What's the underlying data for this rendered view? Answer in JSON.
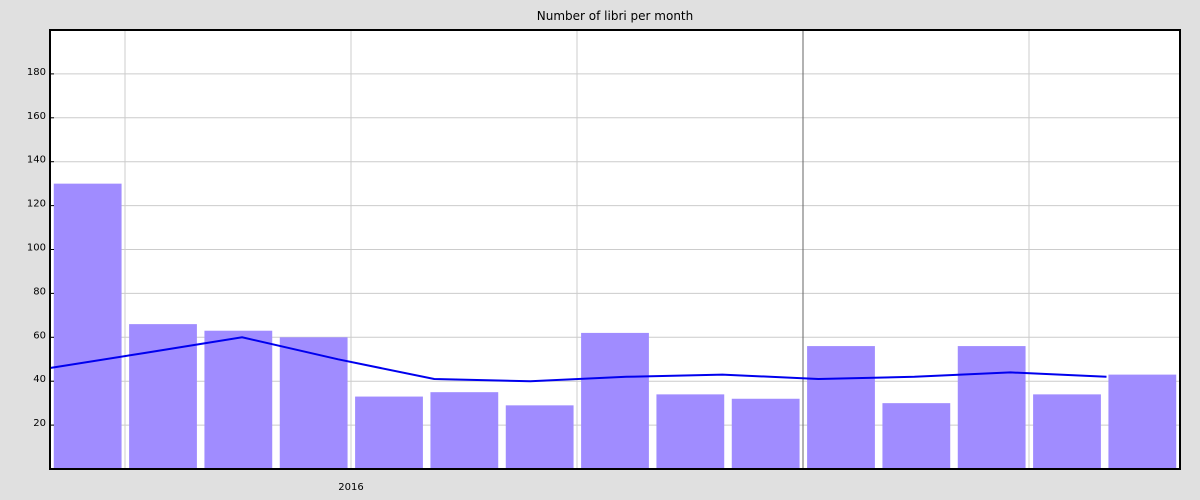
{
  "chart_data": {
    "type": "bar",
    "title": "Number of libri per month",
    "xlabel": "",
    "ylabel": "",
    "x_tick_labels": [
      "2016"
    ],
    "ylim": [
      0,
      200
    ],
    "yticks": [
      20,
      40,
      60,
      80,
      100,
      120,
      140,
      160,
      180
    ],
    "grid": true,
    "bar_color": "#a08cff",
    "line_color": "#0000ee",
    "series": [
      {
        "type": "bar",
        "values": [
          130,
          66,
          63,
          60,
          33,
          35,
          29,
          62,
          34,
          32,
          56,
          30,
          56,
          34,
          43
        ]
      },
      {
        "type": "line",
        "values": [
          46,
          53,
          60,
          50,
          41,
          40,
          42,
          43,
          41,
          42,
          44,
          42
        ]
      }
    ]
  }
}
